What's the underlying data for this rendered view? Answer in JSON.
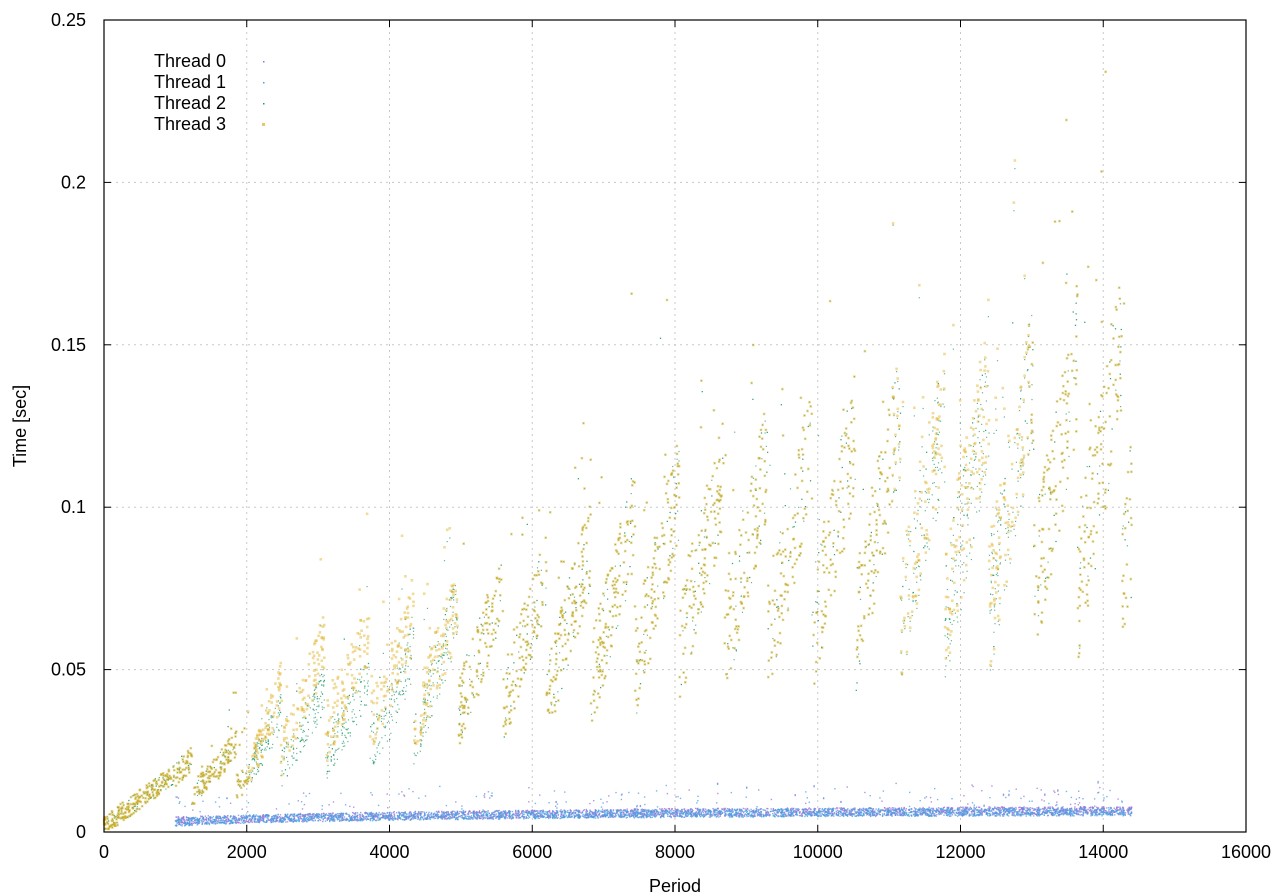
{
  "chart_data": {
    "type": "scatter",
    "xlabel": "Period",
    "ylabel": "Time [sec]",
    "xlim": [
      0,
      16000
    ],
    "ylim": [
      0,
      0.25
    ],
    "x_ticks": [
      "0",
      "2000",
      "4000",
      "6000",
      "8000",
      "10000",
      "12000",
      "14000",
      "16000"
    ],
    "y_ticks": [
      "0",
      "0.05",
      "0.1",
      "0.15",
      "0.2",
      "0.25"
    ],
    "x_tick_values": [
      0,
      2000,
      4000,
      6000,
      8000,
      10000,
      12000,
      14000,
      16000
    ],
    "y_tick_values": [
      0,
      0.05,
      0.1,
      0.15,
      0.2,
      0.25
    ],
    "grid": true,
    "legend_position": "top-left",
    "series": [
      {
        "name": "Thread 0",
        "color": "#9b6fd6",
        "marker": "dot",
        "description_points": [
          [
            0,
            0.002
          ],
          [
            1000,
            0.0035
          ],
          [
            2000,
            0.004
          ],
          [
            4000,
            0.005
          ],
          [
            6000,
            0.0055
          ],
          [
            8000,
            0.006
          ],
          [
            10000,
            0.0062
          ],
          [
            12000,
            0.0064
          ],
          [
            14000,
            0.0066
          ],
          [
            14400,
            0.0066
          ]
        ]
      },
      {
        "name": "Thread 1",
        "color": "#4a9fe0",
        "marker": "dot",
        "description_points": [
          [
            0,
            0.002
          ],
          [
            1000,
            0.003
          ],
          [
            2000,
            0.004
          ],
          [
            4000,
            0.0048
          ],
          [
            6000,
            0.0053
          ],
          [
            8000,
            0.0057
          ],
          [
            10000,
            0.006
          ],
          [
            12000,
            0.0061
          ],
          [
            14000,
            0.0062
          ],
          [
            14400,
            0.0062
          ]
        ]
      },
      {
        "name": "Thread 2",
        "color": "#1f9a6b",
        "marker": "dot",
        "trend_points": [
          [
            0,
            0.002
          ],
          [
            500,
            0.01
          ],
          [
            1000,
            0.015
          ],
          [
            2000,
            0.02
          ],
          [
            2800,
            0.03
          ],
          [
            4000,
            0.035
          ],
          [
            5000,
            0.05
          ],
          [
            6000,
            0.055
          ],
          [
            7000,
            0.065
          ],
          [
            8000,
            0.075
          ],
          [
            9000,
            0.08
          ],
          [
            10000,
            0.085
          ],
          [
            11000,
            0.09
          ],
          [
            12000,
            0.09
          ],
          [
            13000,
            0.1
          ],
          [
            14000,
            0.105
          ],
          [
            14400,
            0.11
          ]
        ]
      },
      {
        "name": "Thread 3",
        "color": "#e0b020",
        "marker": "square",
        "trend_points": [
          [
            0,
            0.002
          ],
          [
            500,
            0.01
          ],
          [
            1000,
            0.015
          ],
          [
            2000,
            0.02
          ],
          [
            2800,
            0.04
          ],
          [
            4000,
            0.045
          ],
          [
            5000,
            0.05
          ],
          [
            6000,
            0.055
          ],
          [
            7000,
            0.065
          ],
          [
            8000,
            0.075
          ],
          [
            9000,
            0.08
          ],
          [
            10000,
            0.085
          ],
          [
            11000,
            0.09
          ],
          [
            12000,
            0.095
          ],
          [
            13000,
            0.1
          ],
          [
            14000,
            0.105
          ],
          [
            14400,
            0.11
          ]
        ]
      }
    ]
  }
}
